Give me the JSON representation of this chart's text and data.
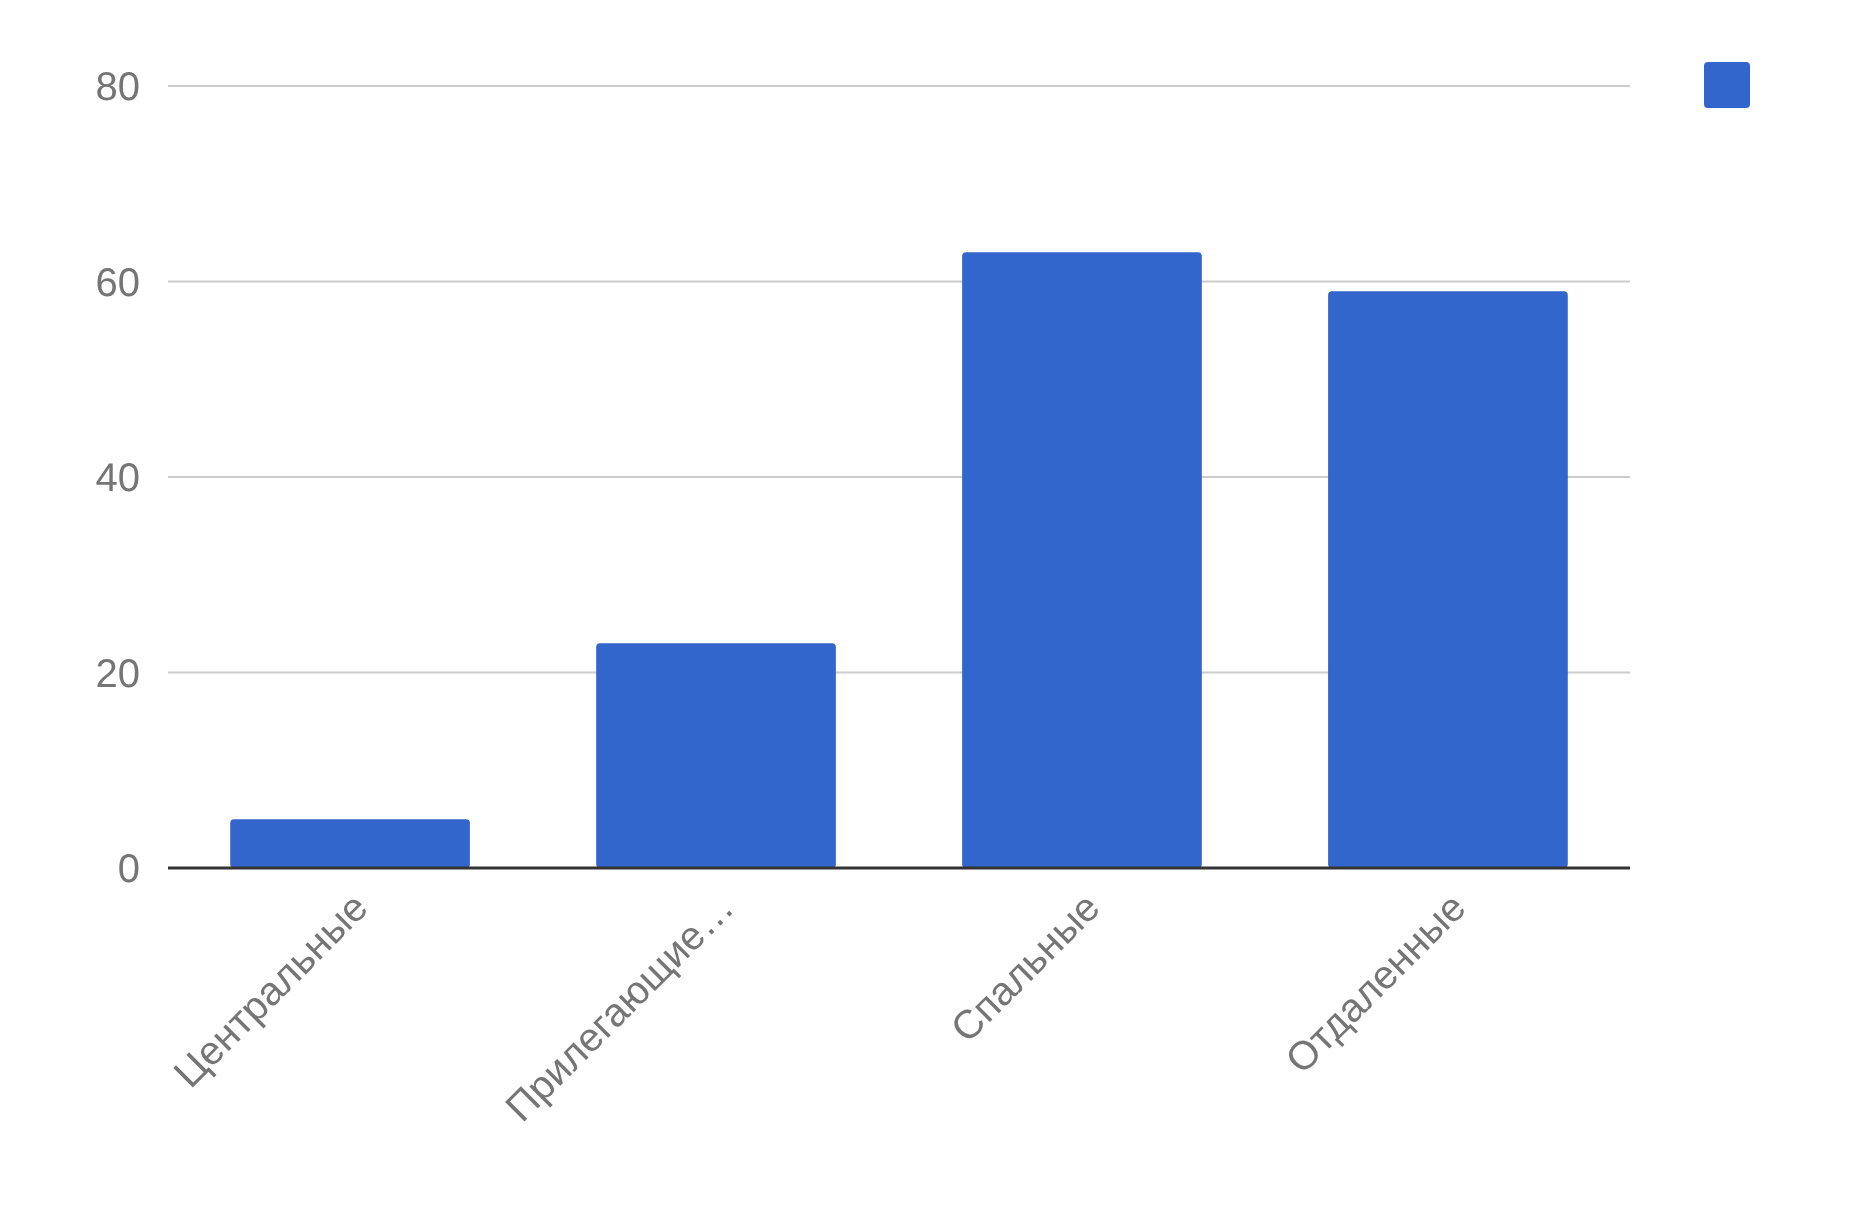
{
  "chart_data": {
    "type": "bar",
    "categories": [
      "Центральные",
      "Прилегающие…",
      "Спальные",
      "Отдаленные"
    ],
    "series": [
      {
        "color": "#3366cc",
        "values": [
          5,
          23,
          63,
          59
        ]
      }
    ],
    "ylim": [
      0,
      80
    ],
    "yticks": [
      0,
      20,
      40,
      60,
      80
    ],
    "grid": "y"
  }
}
